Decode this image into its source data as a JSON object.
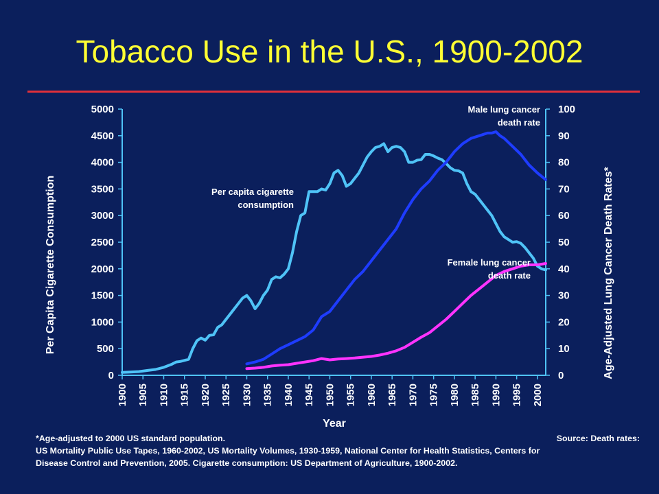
{
  "slide": {
    "title": "Tobacco Use in the U.S., 1900-2002"
  },
  "footnote": {
    "age_note": "*Age-adjusted to 2000 US standard population.",
    "source_lead": "Source: Death rates:",
    "line2": "US Mortality Public Use Tapes, 1960-2002, US Mortality Volumes, 1930-1959, National Center for Health Statistics, Centers for",
    "line3": "Disease Control and Prevention, 2005. Cigarette consumption: US Department of Agriculture, 1900-2002."
  },
  "chart_data": {
    "type": "line",
    "title": "Tobacco Use in the U.S., 1900-2002",
    "xlabel": "Year",
    "ylabel_left": "Per Capita Cigarette Consumption",
    "ylabel_right": "Age-Adjusted Lung Cancer Death Rates*",
    "xlim": [
      1900,
      2002
    ],
    "ylim_left": [
      0,
      5000
    ],
    "ylim_right": [
      0,
      100
    ],
    "x_ticks": [
      1900,
      1905,
      1910,
      1915,
      1920,
      1925,
      1930,
      1935,
      1940,
      1945,
      1950,
      1955,
      1960,
      1965,
      1970,
      1975,
      1980,
      1985,
      1990,
      1995,
      2000
    ],
    "y_ticks_left": [
      0,
      500,
      1000,
      1500,
      2000,
      2500,
      3000,
      3500,
      4000,
      4500,
      5000
    ],
    "y_ticks_right": [
      0,
      10,
      20,
      30,
      40,
      50,
      60,
      70,
      80,
      90,
      100
    ],
    "grid": false,
    "colors": {
      "background": "#0b1f5c",
      "title": "#ffff33",
      "rule": "#e0303a",
      "cigarette": "#4fc3f7",
      "male": "#1e3cff",
      "female": "#ff33ff",
      "axis": "#4fc3f7"
    },
    "series": [
      {
        "id": "cigarette",
        "name": "Per capita cigarette consumption",
        "axis": "left",
        "x": [
          1900,
          1902,
          1904,
          1906,
          1908,
          1910,
          1912,
          1913,
          1914,
          1916,
          1917,
          1918,
          1919,
          1920,
          1921,
          1922,
          1923,
          1924,
          1925,
          1926,
          1927,
          1928,
          1929,
          1930,
          1931,
          1932,
          1933,
          1934,
          1935,
          1936,
          1937,
          1938,
          1939,
          1940,
          1941,
          1942,
          1943,
          1944,
          1945,
          1946,
          1947,
          1948,
          1949,
          1950,
          1951,
          1952,
          1953,
          1954,
          1955,
          1956,
          1957,
          1958,
          1959,
          1960,
          1961,
          1962,
          1963,
          1964,
          1965,
          1966,
          1967,
          1968,
          1969,
          1970,
          1971,
          1972,
          1973,
          1974,
          1975,
          1976,
          1977,
          1978,
          1979,
          1980,
          1981,
          1982,
          1983,
          1984,
          1985,
          1986,
          1987,
          1988,
          1989,
          1990,
          1991,
          1992,
          1993,
          1994,
          1995,
          1996,
          1997,
          1998,
          1999,
          2000,
          2001,
          2002
        ],
        "y": [
          54,
          60,
          70,
          90,
          110,
          150,
          210,
          250,
          260,
          300,
          500,
          650,
          700,
          660,
          750,
          760,
          900,
          950,
          1050,
          1150,
          1250,
          1350,
          1450,
          1500,
          1400,
          1250,
          1350,
          1500,
          1600,
          1800,
          1850,
          1830,
          1900,
          2000,
          2300,
          2700,
          3000,
          3050,
          3450,
          3450,
          3450,
          3500,
          3480,
          3600,
          3800,
          3850,
          3750,
          3550,
          3600,
          3700,
          3800,
          3950,
          4100,
          4200,
          4280,
          4300,
          4350,
          4200,
          4280,
          4300,
          4280,
          4200,
          4000,
          4000,
          4040,
          4050,
          4150,
          4150,
          4120,
          4080,
          4050,
          3980,
          3900,
          3850,
          3840,
          3800,
          3600,
          3450,
          3400,
          3300,
          3200,
          3100,
          3000,
          2850,
          2700,
          2600,
          2550,
          2500,
          2510,
          2480,
          2400,
          2300,
          2200,
          2050,
          2000,
          1980
        ]
      },
      {
        "id": "male",
        "name": "Male lung cancer death rate",
        "axis": "right",
        "x": [
          1930,
          1932,
          1934,
          1936,
          1938,
          1940,
          1942,
          1944,
          1946,
          1948,
          1950,
          1952,
          1954,
          1956,
          1958,
          1960,
          1962,
          1964,
          1966,
          1968,
          1970,
          1972,
          1974,
          1976,
          1978,
          1980,
          1982,
          1984,
          1986,
          1988,
          1989,
          1990,
          1991,
          1992,
          1994,
          1996,
          1998,
          2000,
          2002
        ],
        "y": [
          4.3,
          5,
          6,
          8,
          10,
          11.5,
          13,
          14.5,
          17,
          22,
          24,
          28,
          32,
          36,
          39,
          43,
          47,
          51,
          55,
          61,
          66,
          70,
          73,
          77,
          80,
          84,
          87,
          89,
          90,
          91,
          91,
          91.5,
          90,
          89,
          86,
          83,
          79,
          76,
          73.5
        ]
      },
      {
        "id": "female",
        "name": "Female lung cancer death rate",
        "axis": "right",
        "x": [
          1930,
          1932,
          1934,
          1936,
          1938,
          1940,
          1942,
          1944,
          1946,
          1948,
          1950,
          1952,
          1954,
          1956,
          1958,
          1960,
          1962,
          1964,
          1966,
          1968,
          1970,
          1972,
          1974,
          1976,
          1978,
          1980,
          1982,
          1984,
          1986,
          1988,
          1990,
          1992,
          1994,
          1996,
          1998,
          2000,
          2002
        ],
        "y": [
          2.5,
          2.7,
          3,
          3.5,
          3.8,
          4,
          4.5,
          5,
          5.5,
          6.3,
          5.8,
          6.1,
          6.3,
          6.5,
          6.8,
          7.1,
          7.6,
          8.3,
          9.2,
          10.5,
          12.4,
          14.3,
          16,
          18.5,
          21,
          24,
          27,
          30,
          32.5,
          35,
          37.5,
          39,
          40,
          41,
          41.5,
          41.5,
          42
        ]
      }
    ],
    "annotations": [
      {
        "series": "cigarette",
        "lines": [
          "Per capita cigarette",
          "consumption"
        ]
      },
      {
        "series": "male",
        "lines": [
          "Male lung cancer",
          "death rate"
        ]
      },
      {
        "series": "female",
        "lines": [
          "Female lung cancer",
          "death rate"
        ]
      }
    ]
  }
}
